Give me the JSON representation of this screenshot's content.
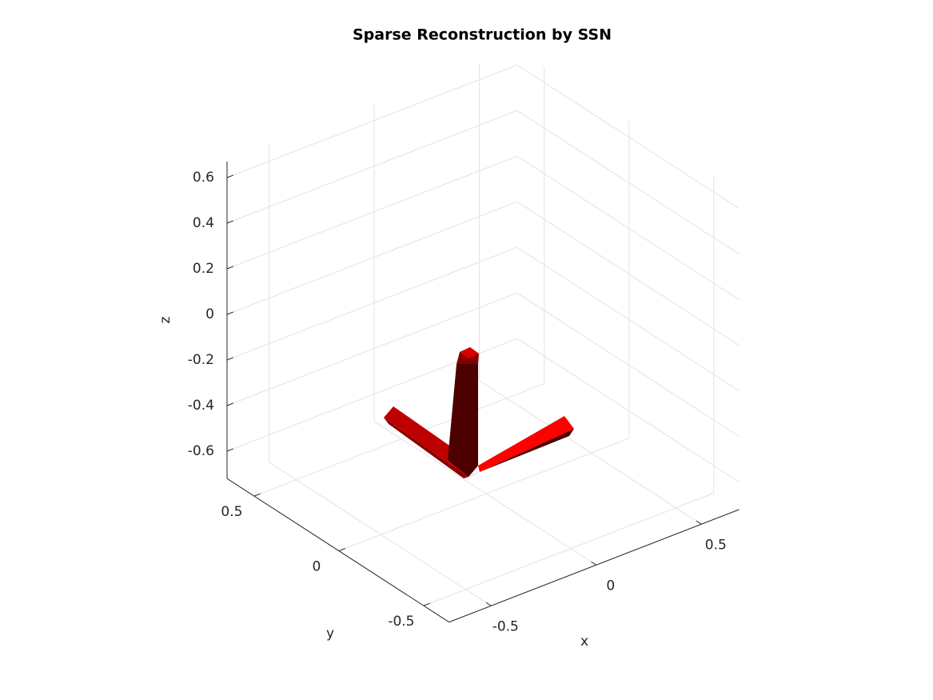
{
  "chart_data": {
    "type": "isosurface",
    "title": "Sparse Reconstruction by SSN",
    "xlabel": "x",
    "ylabel": "y",
    "zlabel": "z",
    "xlim": [
      -0.7,
      0.68
    ],
    "ylim": [
      -0.65,
      0.66
    ],
    "zlim": [
      -0.72,
      0.67
    ],
    "xticks": [
      -0.5,
      0,
      0.5
    ],
    "yticks": [
      -0.5,
      0,
      0.5
    ],
    "zticks": [
      -0.6,
      -0.4,
      -0.2,
      0,
      0.2,
      0.4,
      0.6
    ],
    "color": "#ff0000",
    "grid": true
  }
}
